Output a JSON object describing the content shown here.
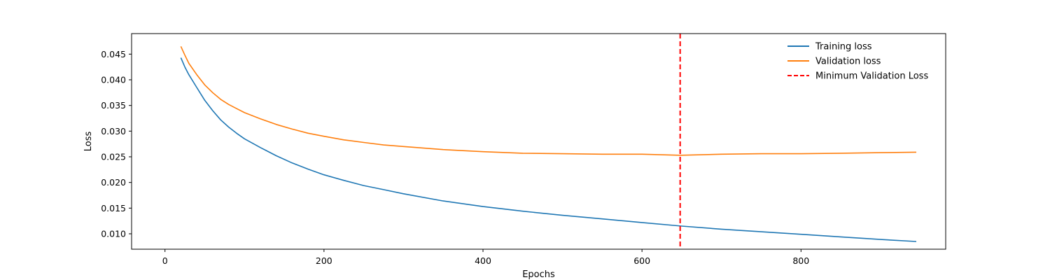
{
  "chart_data": {
    "type": "line",
    "title": "",
    "xlabel": "Epochs",
    "ylabel": "Loss",
    "xlim": [
      -42,
      982
    ],
    "ylim": [
      0.007,
      0.049
    ],
    "xticks": [
      0,
      200,
      400,
      600,
      800
    ],
    "xtick_labels": [
      "0",
      "200",
      "400",
      "600",
      "800"
    ],
    "yticks": [
      0.01,
      0.015,
      0.02,
      0.025,
      0.03,
      0.035,
      0.04,
      0.045
    ],
    "ytick_labels": [
      "0.010",
      "0.015",
      "0.020",
      "0.025",
      "0.030",
      "0.035",
      "0.040",
      "0.045"
    ],
    "grid": false,
    "legend_position": "top-right",
    "series": [
      {
        "name": "Training loss",
        "color": "#1f77b4",
        "x": [
          20,
          25,
          30,
          40,
          50,
          60,
          70,
          80,
          90,
          100,
          120,
          140,
          160,
          180,
          200,
          225,
          250,
          275,
          300,
          350,
          400,
          450,
          500,
          550,
          600,
          650,
          700,
          750,
          800,
          850,
          900,
          945
        ],
        "y": [
          0.0443,
          0.0425,
          0.041,
          0.0385,
          0.036,
          0.034,
          0.0322,
          0.0308,
          0.0296,
          0.0285,
          0.0268,
          0.0252,
          0.0238,
          0.0226,
          0.0215,
          0.0204,
          0.0194,
          0.0186,
          0.0178,
          0.0164,
          0.0153,
          0.0144,
          0.0136,
          0.0129,
          0.0122,
          0.0115,
          0.0109,
          0.0104,
          0.0099,
          0.0094,
          0.0089,
          0.0085
        ]
      },
      {
        "name": "Validation loss",
        "color": "#ff7f0e",
        "x": [
          20,
          25,
          30,
          40,
          50,
          60,
          70,
          80,
          90,
          100,
          120,
          140,
          160,
          180,
          200,
          225,
          250,
          275,
          300,
          350,
          400,
          450,
          500,
          550,
          600,
          648,
          700,
          750,
          800,
          850,
          900,
          945
        ],
        "y": [
          0.0465,
          0.0448,
          0.0432,
          0.041,
          0.039,
          0.0375,
          0.0362,
          0.0352,
          0.0344,
          0.0336,
          0.0324,
          0.0313,
          0.0304,
          0.0296,
          0.029,
          0.0283,
          0.0278,
          0.0273,
          0.027,
          0.0264,
          0.026,
          0.0257,
          0.0256,
          0.0255,
          0.0255,
          0.0253,
          0.0255,
          0.0256,
          0.0256,
          0.0257,
          0.0258,
          0.0259
        ]
      }
    ],
    "vline": {
      "name": "Minimum Validation Loss",
      "x": 648,
      "color": "#ff0000",
      "style": "dashed"
    }
  }
}
